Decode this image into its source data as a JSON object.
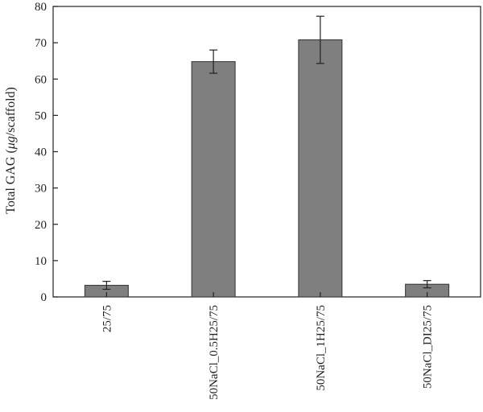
{
  "chart_data": {
    "type": "bar",
    "ylabel_prefix": "Total GAG (",
    "ylabel_italic": "μg",
    "ylabel_suffix": "/scaffold)",
    "categories": [
      "25/75",
      "50NaCl_0.5H25/75",
      "50NaCl_1H25/75",
      "50NaCl_DI25/75"
    ],
    "values": [
      3.2,
      64.8,
      70.8,
      3.5
    ],
    "errors": [
      1.1,
      3.2,
      6.5,
      1.0
    ],
    "ylim": [
      0,
      80
    ],
    "yticks": [
      0,
      10,
      20,
      30,
      40,
      50,
      60,
      70,
      80
    ],
    "grid": false,
    "bar_color": "#7f7f7f"
  }
}
